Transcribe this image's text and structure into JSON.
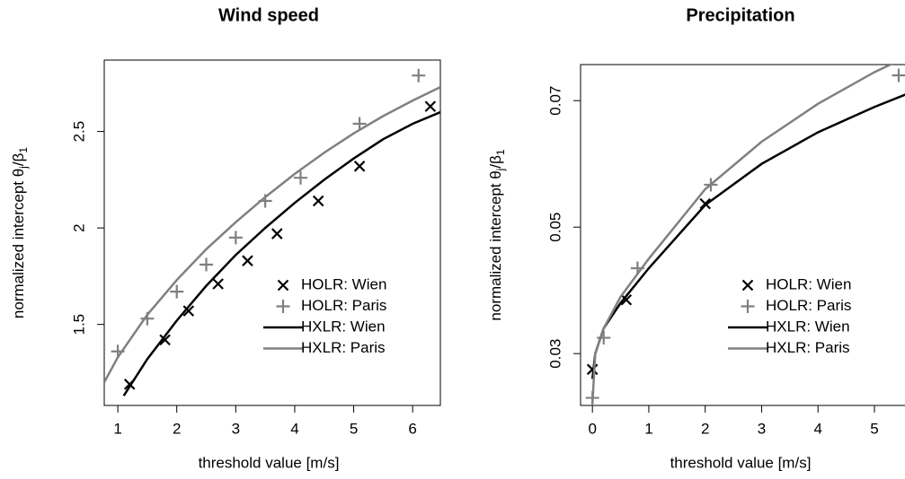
{
  "chart_data": [
    {
      "type": "line",
      "title": "Wind speed",
      "x_label": "threshold value [m/s]",
      "y_label": [
        "normalized intercept θ",
        "j",
        "/β",
        "1"
      ],
      "xlim": [
        0.77,
        6.47
      ],
      "ylim": [
        1.08,
        2.87
      ],
      "xticks": [
        1,
        2,
        3,
        4,
        5,
        6
      ],
      "yticks": [
        1.5,
        2.0,
        2.5
      ],
      "legend": "bottomright",
      "series": [
        {
          "name": "HOLR: Wien",
          "color": "#000000",
          "style": "x",
          "x": [
            1.2,
            1.8,
            2.2,
            2.7,
            3.2,
            3.7,
            4.4,
            5.1,
            6.3
          ],
          "values": [
            1.19,
            1.42,
            1.57,
            1.71,
            1.83,
            1.97,
            2.14,
            2.32,
            2.63
          ]
        },
        {
          "name": "HOLR: Paris",
          "color": "#808080",
          "style": "+",
          "x": [
            1,
            1.5,
            2,
            2.5,
            3,
            3.5,
            4.1,
            5.1,
            6.1
          ],
          "values": [
            1.36,
            1.53,
            1.67,
            1.81,
            1.95,
            2.14,
            2.26,
            2.54,
            2.79
          ]
        },
        {
          "name": "HXLR: Wien",
          "color": "#000000",
          "style": "line",
          "x": [
            1.1,
            1.5,
            2,
            2.5,
            3,
            3.5,
            4,
            4.5,
            5,
            5.5,
            6,
            6.47
          ],
          "values": [
            1.13,
            1.32,
            1.52,
            1.7,
            1.86,
            2.0,
            2.13,
            2.25,
            2.36,
            2.46,
            2.54,
            2.6
          ]
        },
        {
          "name": "HXLR: Paris",
          "color": "#808080",
          "style": "line",
          "x": [
            0.77,
            1,
            1.5,
            2,
            2.5,
            3,
            3.5,
            4,
            4.5,
            5,
            5.5,
            6,
            6.47
          ],
          "values": [
            1.2,
            1.33,
            1.55,
            1.73,
            1.89,
            2.03,
            2.16,
            2.28,
            2.39,
            2.49,
            2.58,
            2.66,
            2.73
          ]
        }
      ]
    },
    {
      "type": "line",
      "title": "Precipitation",
      "x_label": "threshold value [m/s]",
      "y_label": [
        "normalized intercept θ",
        "j",
        "/β",
        "1"
      ],
      "xlim": [
        -0.21,
        5.59
      ],
      "ylim": [
        0.0218,
        0.0757
      ],
      "xticks": [
        0,
        1,
        2,
        3,
        4,
        5
      ],
      "yticks": [
        0.03,
        0.05,
        0.07
      ],
      "legend": "bottomright",
      "series": [
        {
          "name": "HOLR: Wien",
          "color": "#000000",
          "style": "x",
          "x": [
            0,
            0.6,
            2
          ],
          "values": [
            0.0275,
            0.0385,
            0.0537
          ]
        },
        {
          "name": "HOLR: Paris",
          "color": "#808080",
          "style": "+",
          "x": [
            0,
            0.2,
            0.8,
            2.1,
            5.43
          ],
          "values": [
            0.023,
            0.0325,
            0.0435,
            0.0567,
            0.074
          ]
        },
        {
          "name": "HXLR: Wien",
          "color": "#000000",
          "style": "line",
          "x": [
            0,
            0.05,
            0.2,
            0.5,
            1,
            2,
            3,
            4,
            5,
            5.59
          ],
          "values": [
            0.026,
            0.03,
            0.034,
            0.038,
            0.0435,
            0.0535,
            0.06,
            0.065,
            0.069,
            0.0711
          ]
        },
        {
          "name": "HXLR: Paris",
          "color": "#808080",
          "style": "line",
          "x": [
            0,
            0.05,
            0.2,
            0.5,
            1,
            2,
            3,
            4,
            5,
            5.59
          ],
          "values": [
            0.022,
            0.03,
            0.034,
            0.039,
            0.045,
            0.056,
            0.0635,
            0.0695,
            0.0745,
            0.077
          ]
        }
      ]
    }
  ]
}
